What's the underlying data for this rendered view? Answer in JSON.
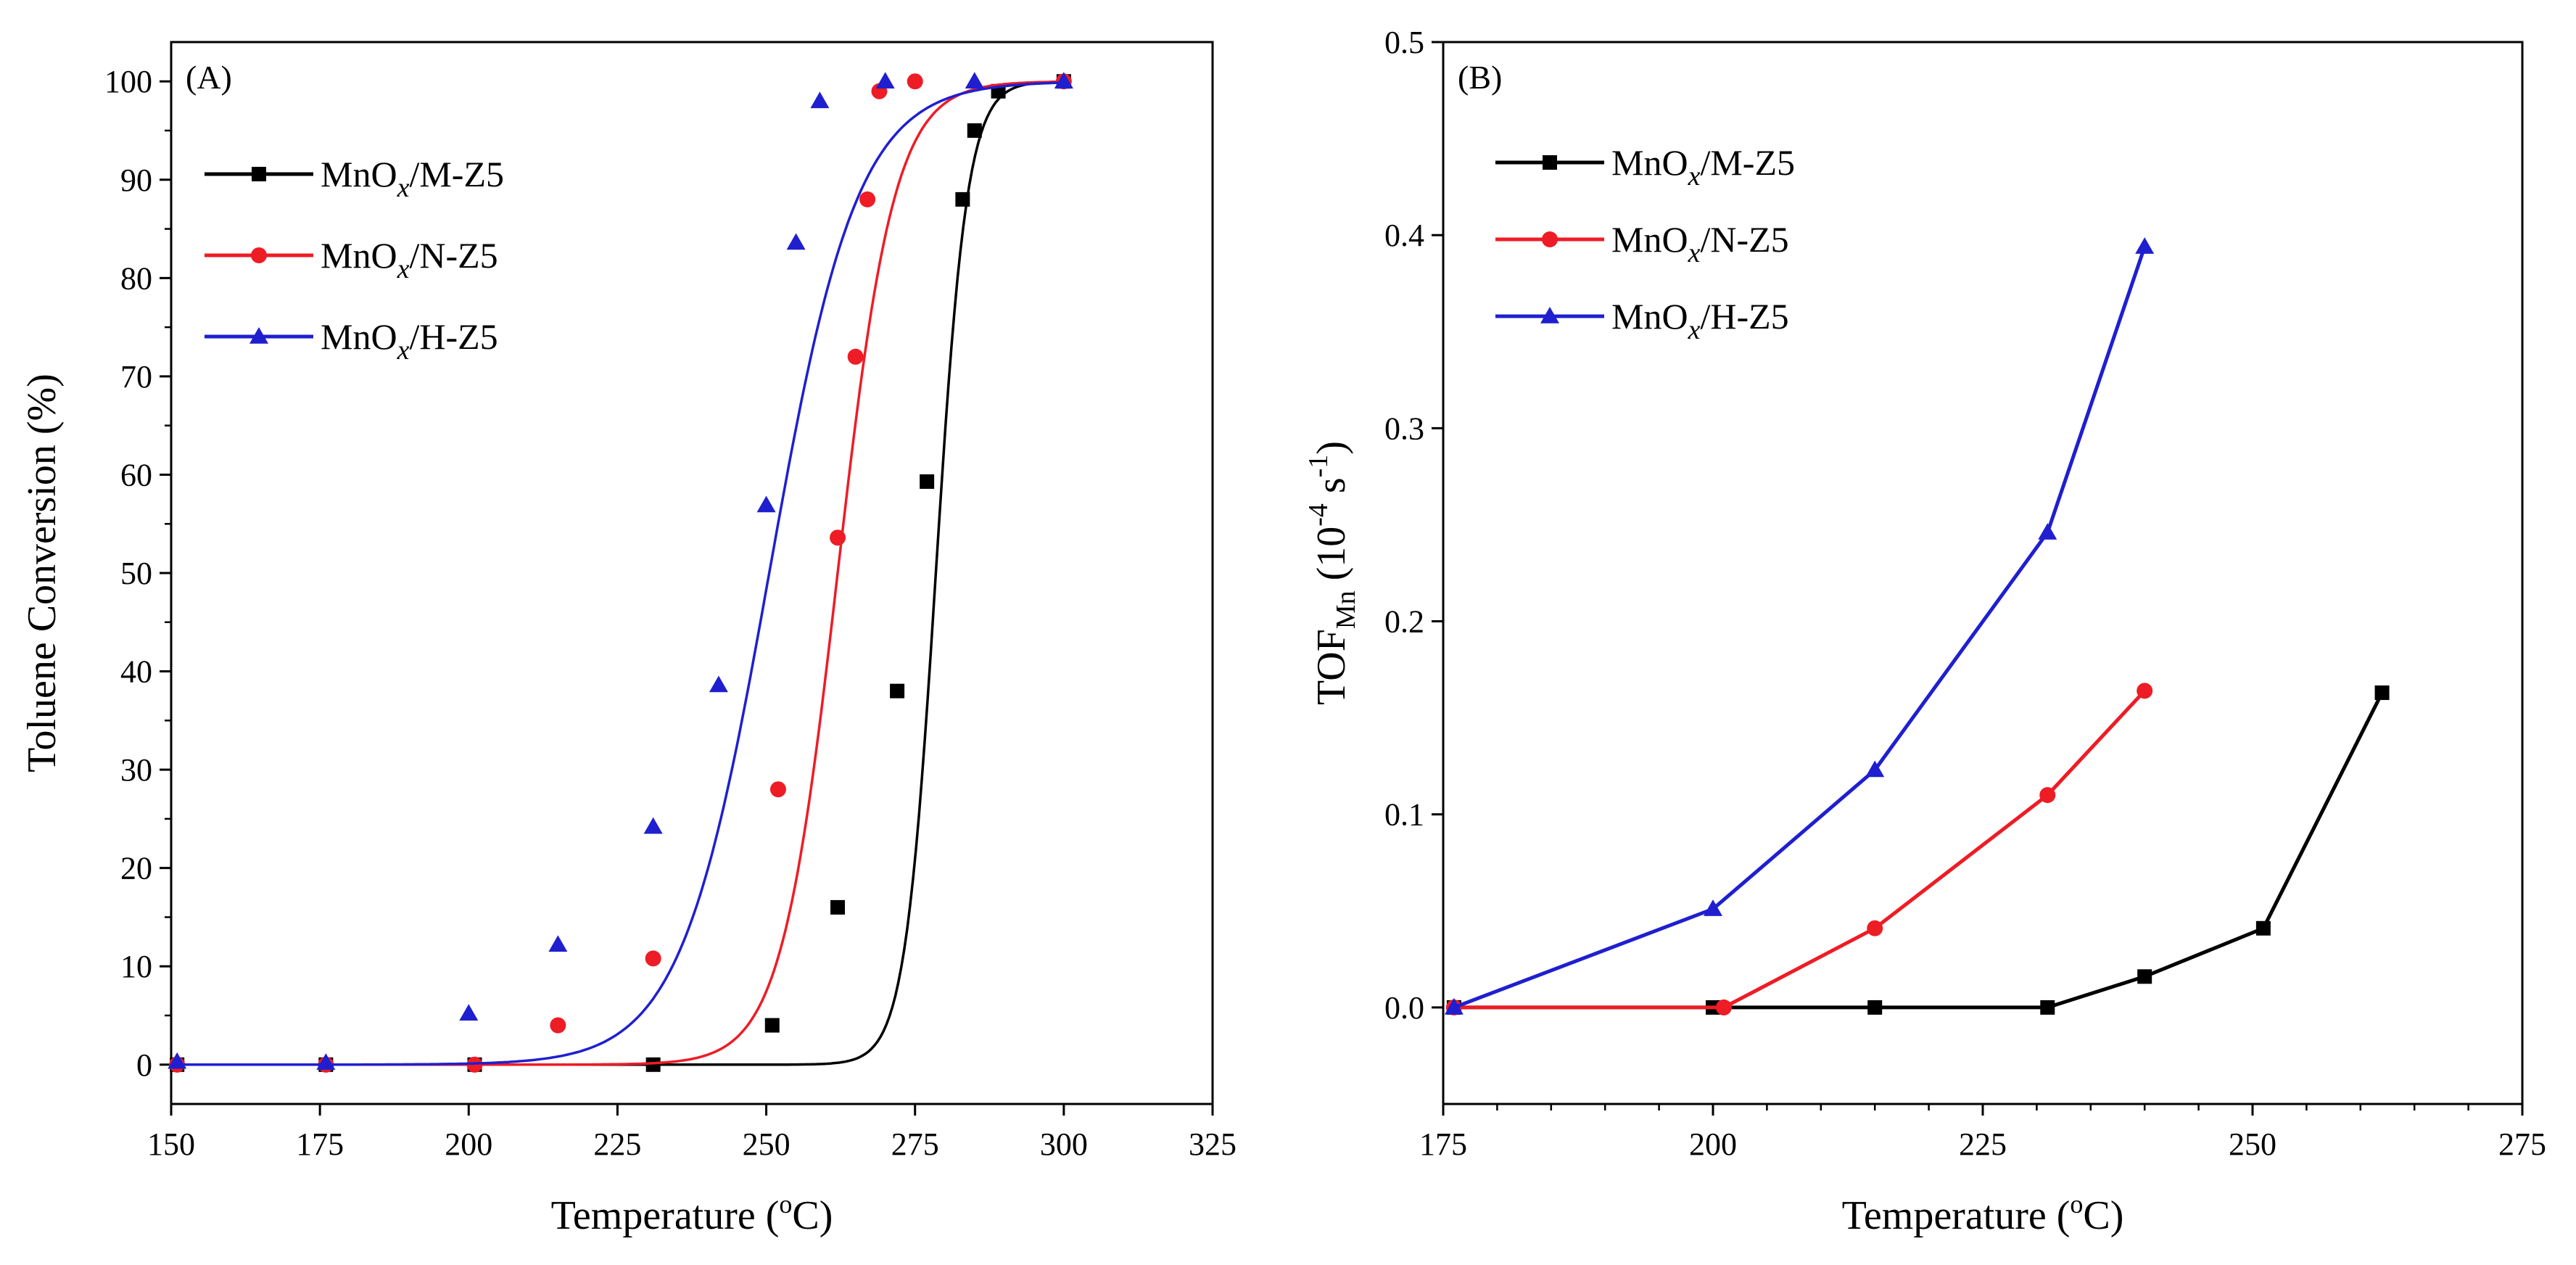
{
  "chart_data": [
    {
      "type": "line",
      "panel_label": "(A)",
      "xlabel": "Temperature (",
      "xlabel_sup": "o",
      "xlabel_tail": "C)",
      "ylabel": "Toluene Conversion (%)",
      "xlim": [
        150,
        325
      ],
      "ylim": [
        -4,
        104
      ],
      "xticks": [
        150,
        175,
        200,
        225,
        250,
        275,
        300,
        325
      ],
      "yticks": [
        0,
        10,
        20,
        30,
        40,
        50,
        60,
        70,
        80,
        90,
        100
      ],
      "legend_position": "top-left",
      "series": [
        {
          "name": "MnO",
          "name_sub": "x",
          "name_tail": "/M-Z5",
          "color": "#000000",
          "marker": "square",
          "fit": {
            "T50": 278.5,
            "k": 0.38
          },
          "x": [
            151,
            176,
            201,
            231,
            251,
            262,
            272,
            277,
            283,
            285,
            289,
            300
          ],
          "y": [
            0,
            0,
            0,
            0,
            4,
            16,
            38,
            59.3,
            88,
            95,
            99,
            100
          ]
        },
        {
          "name": "MnO",
          "name_sub": "x",
          "name_tail": "/N-Z5",
          "color": "#ee1c25",
          "marker": "circle",
          "fit": {
            "T50": 262,
            "k": 0.21
          },
          "x": [
            151,
            176,
            201,
            215,
            231,
            252,
            262,
            265,
            267,
            269,
            275,
            300
          ],
          "y": [
            0,
            0,
            0,
            4,
            10.8,
            28,
            53.6,
            72,
            88,
            99,
            100,
            100
          ]
        },
        {
          "name": "MnO",
          "name_sub": "x",
          "name_tail": "/H-Z5",
          "color": "#1f1fd0",
          "marker": "triangle",
          "fit": {
            "T50": 250.5,
            "k": 0.135
          },
          "x": [
            151,
            176,
            200,
            215,
            231,
            242,
            250,
            255,
            259,
            270,
            285,
            300
          ],
          "y": [
            0.3,
            0.2,
            5.2,
            12.2,
            24.2,
            38.6,
            56.9,
            83.6,
            98,
            100,
            100,
            100
          ]
        }
      ]
    },
    {
      "type": "line",
      "panel_label": "(B)",
      "xlabel": "Temperature (",
      "xlabel_sup": "o",
      "xlabel_tail": "C)",
      "ylabel": "TOF",
      "ylabel_sub": "Mn",
      "ylabel_unit_open": " (10",
      "ylabel_unit_exp1": "-4",
      "ylabel_unit_mid": " s",
      "ylabel_unit_exp2": "-1",
      "ylabel_unit_close": ")",
      "xlim": [
        175,
        275
      ],
      "ylim": [
        -0.05,
        0.5
      ],
      "xticks": [
        175,
        200,
        225,
        250,
        275
      ],
      "yticks": [
        0.0,
        0.1,
        0.2,
        0.3,
        0.4,
        0.5
      ],
      "ytick_labels": [
        "0.0",
        "0.1",
        "0.2",
        "0.3",
        "0.4",
        "0.5"
      ],
      "legend_position": "top-left",
      "series": [
        {
          "name": "MnO",
          "name_sub": "x",
          "name_tail": "/M-Z5",
          "color": "#000000",
          "marker": "square",
          "x": [
            176,
            200,
            215,
            231,
            240,
            251,
            262
          ],
          "y": [
            0,
            0,
            0,
            0,
            0.016,
            0.041,
            0.163
          ]
        },
        {
          "name": "MnO",
          "name_sub": "x",
          "name_tail": "/N-Z5",
          "color": "#ee1c25",
          "marker": "circle",
          "x": [
            176,
            201,
            215,
            231,
            240
          ],
          "y": [
            0,
            0,
            0.041,
            0.11,
            0.164
          ]
        },
        {
          "name": "MnO",
          "name_sub": "x",
          "name_tail": "/H-Z5",
          "color": "#1f1fd0",
          "marker": "triangle",
          "x": [
            176,
            200,
            215,
            231,
            240
          ],
          "y": [
            0,
            0.051,
            0.123,
            0.246,
            0.394
          ]
        }
      ]
    }
  ]
}
